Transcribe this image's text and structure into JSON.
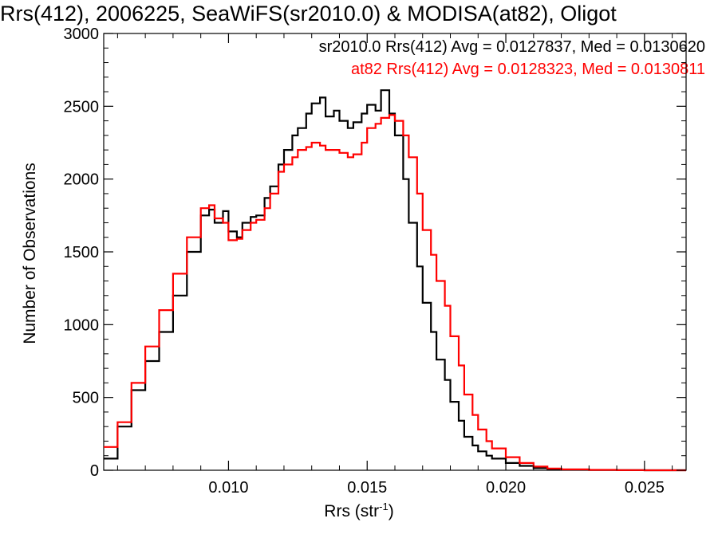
{
  "chart_data": {
    "type": "line",
    "title": "Rrs(412), 2006225, SeaWiFS(sr2010.0) & MODISA(at82), Oligot",
    "xlabel": "Rrs (str",
    "xlabel_sup": "-1",
    "xlabel_close": ")",
    "ylabel": "Number of Observations",
    "xlim": [
      0.0055,
      0.0265
    ],
    "ylim": [
      0,
      3000
    ],
    "xticks": [
      0.01,
      0.015,
      0.02,
      0.025
    ],
    "xtick_labels": [
      "0.010",
      "0.015",
      "0.020",
      "0.025"
    ],
    "yticks": [
      0,
      500,
      1000,
      1500,
      2000,
      2500,
      3000
    ],
    "ytick_labels": [
      "0",
      "500",
      "1000",
      "1500",
      "2000",
      "2500",
      "3000"
    ],
    "legend_placement": "top-right",
    "grid": false,
    "series": [
      {
        "name": "sr2010.0",
        "legend": "sr2010.0 Rrs(412) Avg = 0.0127837, Med = 0.0130620",
        "color": "#000000",
        "x": [
          0.0055,
          0.006,
          0.0065,
          0.007,
          0.0075,
          0.008,
          0.0085,
          0.009,
          0.0093,
          0.0095,
          0.0098,
          0.01,
          0.0103,
          0.0105,
          0.0108,
          0.011,
          0.0113,
          0.0115,
          0.0118,
          0.012,
          0.0123,
          0.0125,
          0.0128,
          0.013,
          0.0133,
          0.0135,
          0.0138,
          0.014,
          0.0143,
          0.0145,
          0.0148,
          0.015,
          0.0153,
          0.0155,
          0.0158,
          0.016,
          0.0163,
          0.0165,
          0.0168,
          0.017,
          0.0173,
          0.0175,
          0.0178,
          0.018,
          0.0183,
          0.0185,
          0.0188,
          0.019,
          0.0193,
          0.0195,
          0.02,
          0.0205,
          0.021,
          0.0215,
          0.022,
          0.023,
          0.024,
          0.025,
          0.0265
        ],
        "y": [
          80,
          300,
          550,
          750,
          950,
          1200,
          1500,
          1750,
          1790,
          1700,
          1780,
          1640,
          1600,
          1700,
          1740,
          1750,
          1870,
          1950,
          2100,
          2200,
          2300,
          2350,
          2450,
          2520,
          2560,
          2430,
          2470,
          2400,
          2350,
          2390,
          2450,
          2510,
          2470,
          2610,
          2450,
          2300,
          2000,
          1700,
          1400,
          1150,
          950,
          760,
          620,
          470,
          340,
          230,
          170,
          130,
          100,
          80,
          50,
          30,
          15,
          8,
          5,
          2,
          1,
          0,
          0
        ]
      },
      {
        "name": "at82",
        "legend": "at82 Rrs(412) Avg = 0.0128323, Med = 0.0130811",
        "color": "#ff0000",
        "x": [
          0.0055,
          0.006,
          0.0065,
          0.007,
          0.0075,
          0.008,
          0.0085,
          0.009,
          0.0093,
          0.0095,
          0.0098,
          0.01,
          0.0103,
          0.0105,
          0.0108,
          0.011,
          0.0113,
          0.0115,
          0.0118,
          0.012,
          0.0123,
          0.0125,
          0.0128,
          0.013,
          0.0133,
          0.0135,
          0.0138,
          0.014,
          0.0143,
          0.0145,
          0.0148,
          0.015,
          0.0153,
          0.0155,
          0.0158,
          0.016,
          0.0163,
          0.0165,
          0.0168,
          0.017,
          0.0173,
          0.0175,
          0.0178,
          0.018,
          0.0183,
          0.0185,
          0.0188,
          0.019,
          0.0193,
          0.0195,
          0.02,
          0.0205,
          0.021,
          0.0215,
          0.022,
          0.023,
          0.024,
          0.025,
          0.0265
        ],
        "y": [
          160,
          330,
          600,
          850,
          1100,
          1350,
          1600,
          1800,
          1820,
          1730,
          1700,
          1580,
          1590,
          1650,
          1700,
          1720,
          1800,
          1900,
          2050,
          2100,
          2150,
          2200,
          2220,
          2250,
          2230,
          2200,
          2200,
          2180,
          2150,
          2170,
          2250,
          2350,
          2380,
          2420,
          2440,
          2400,
          2300,
          2150,
          1900,
          1650,
          1480,
          1300,
          1130,
          920,
          720,
          520,
          380,
          280,
          200,
          150,
          90,
          50,
          25,
          12,
          6,
          3,
          1,
          0,
          0
        ]
      }
    ]
  }
}
